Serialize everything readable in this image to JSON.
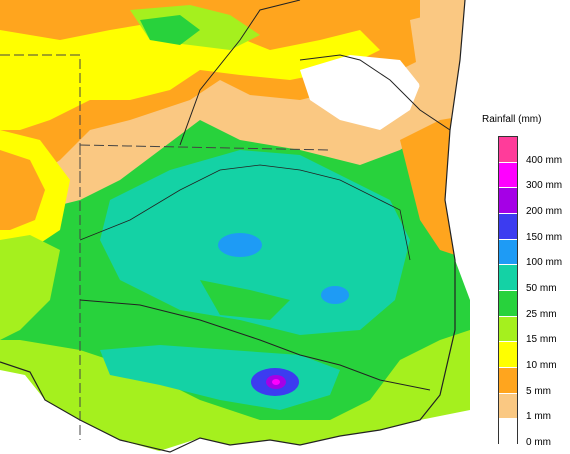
{
  "legend": {
    "title": "Rainfall (mm)",
    "bins": [
      {
        "label": "400 mm",
        "color": "#ff3c9a"
      },
      {
        "label": "300 mm",
        "color": "#ff00ff"
      },
      {
        "label": "200 mm",
        "color": "#a500e6"
      },
      {
        "label": "150 mm",
        "color": "#3c3cf0"
      },
      {
        "label": "100 mm",
        "color": "#1e9bf5"
      },
      {
        "label": "50 mm",
        "color": "#14d2a5"
      },
      {
        "label": "25 mm",
        "color": "#28d23c"
      },
      {
        "label": "15 mm",
        "color": "#a5f01e"
      },
      {
        "label": "10 mm",
        "color": "#ffff00"
      },
      {
        "label": "5 mm",
        "color": "#ffa51e"
      },
      {
        "label": "1 mm",
        "color": "#fac882"
      },
      {
        "label": "0 mm",
        "color": "#ffffff"
      }
    ]
  },
  "colors": {
    "sea": "#ffffff",
    "borders": "#222222",
    "state_lines": "#444444"
  }
}
